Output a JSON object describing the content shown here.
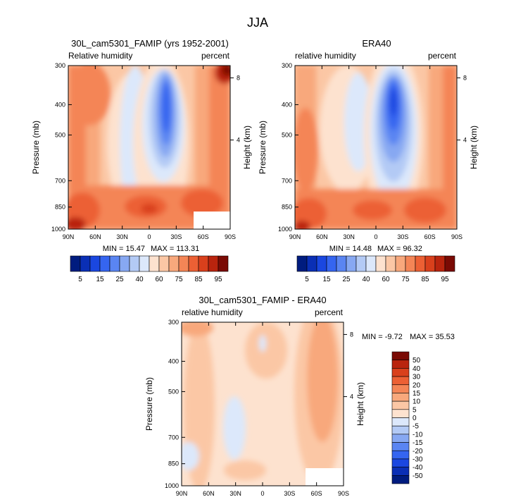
{
  "chart_data": {
    "type": "heatmap",
    "title": "JJA",
    "x_ticks": [
      "90N",
      "60N",
      "30N",
      "0",
      "30S",
      "60S",
      "90S"
    ],
    "y_ticks": [
      "300",
      "400",
      "500",
      "700",
      "850",
      "1000"
    ],
    "ylabel": "Pressure (mb)",
    "ylabel_right": "Height (km)",
    "height_ticks": [
      "8",
      "4"
    ],
    "panels": [
      {
        "id": "model",
        "title": "30L_cam5301_FAMIP (yrs 1952-2001)",
        "left_label": "Relative humidity",
        "right_label": "percent",
        "min_text": "MIN = 15.47",
        "max_text": "MAX = 113.31",
        "min": 15.47,
        "max": 113.31,
        "colorbar_labels": [
          "5",
          "15",
          "25",
          "40",
          "60",
          "75",
          "85",
          "95"
        ]
      },
      {
        "id": "obs",
        "title": "ERA40",
        "left_label": "relative humidity",
        "right_label": "percent",
        "min_text": "MIN = 14.48",
        "max_text": "MAX = 96.32",
        "min": 14.48,
        "max": 96.32,
        "colorbar_labels": [
          "5",
          "15",
          "25",
          "40",
          "60",
          "75",
          "85",
          "95"
        ]
      },
      {
        "id": "diff",
        "title": "30L_cam5301_FAMIP - ERA40",
        "left_label": "relative humidity",
        "right_label": "percent",
        "min_text": "MIN = -9.72",
        "max_text": "MAX = 35.53",
        "min": -9.72,
        "max": 35.53,
        "colorbar_labels": [
          "50",
          "40",
          "30",
          "20",
          "15",
          "10",
          "5",
          "0",
          "-5",
          "-10",
          "-15",
          "-20",
          "-30",
          "-40",
          "-50"
        ]
      }
    ]
  },
  "colors": {
    "abs_scale": [
      "#001c7f",
      "#0a2fb5",
      "#1a47e0",
      "#3565f0",
      "#5a85f2",
      "#87a8f2",
      "#b3caf5",
      "#dce8fb",
      "#fde2cf",
      "#fbc7a5",
      "#f8a87c",
      "#f48556",
      "#ec6034",
      "#d9401c",
      "#b9240e",
      "#7a0a04"
    ],
    "diff_scale": [
      "#7a0a04",
      "#b9240e",
      "#d9401c",
      "#ec6034",
      "#f48556",
      "#f8a87c",
      "#fbc7a5",
      "#fde2cf",
      "#dce8fb",
      "#b3caf5",
      "#87a8f2",
      "#5a85f2",
      "#3565f0",
      "#1a47e0",
      "#0a2fb5",
      "#001c7f"
    ]
  }
}
